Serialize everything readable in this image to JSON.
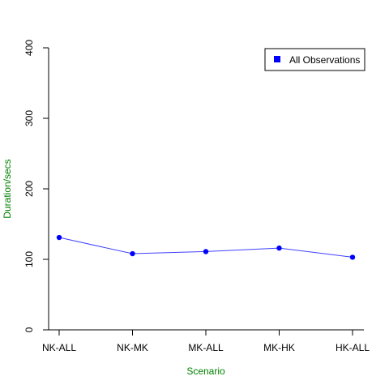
{
  "chart_data": {
    "type": "line",
    "title": "",
    "xlabel": "Scenario",
    "ylabel": "Duration/secs",
    "categories": [
      "NK-ALL",
      "NK-MK",
      "MK-ALL",
      "MK-HK",
      "HK-ALL"
    ],
    "series": [
      {
        "name": "All Observations",
        "color": "#0000ff",
        "line_color": "#4040ff",
        "values": [
          131,
          108,
          111,
          116,
          103
        ]
      }
    ],
    "ylim": [
      0,
      400
    ],
    "yticks": [
      0,
      100,
      200,
      300,
      400
    ],
    "grid": false,
    "legend_position": "top-right",
    "axis_title_color": "#008000"
  }
}
